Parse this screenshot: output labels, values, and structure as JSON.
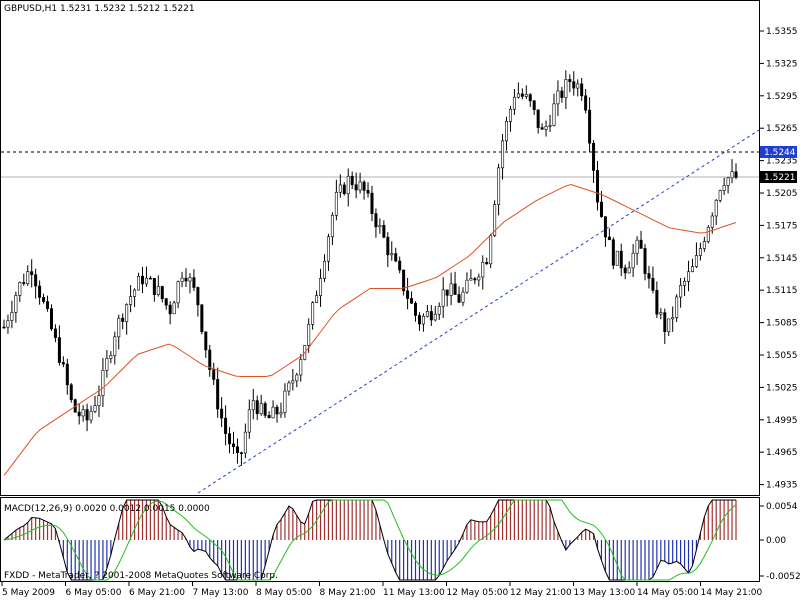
{
  "header": {
    "symbol_title": "GBPUSD,H1  1.5231 1.5232 1.5212 1.5221"
  },
  "main_chart": {
    "price_ticks": [
      "1.5355",
      "1.5325",
      "1.5295",
      "1.5265",
      "1.5235",
      "1.5205",
      "1.5175",
      "1.5145",
      "1.5115",
      "1.5085",
      "1.5055",
      "1.5025",
      "1.4995",
      "1.4965",
      "1.4935"
    ],
    "level_marker": "1.5244",
    "current_price": "1.5221",
    "colors": {
      "candles": "#000000",
      "ma": "#e05020",
      "trendline": "#1f3fcf",
      "price_box": "#000000",
      "level_box": "#1f3fcf"
    }
  },
  "macd": {
    "label": "MACD(12,26,9) 0.0020 0.0012 0.0015 0.0000",
    "ticks": [
      "0.0054",
      "0.00",
      "-0.0052"
    ],
    "colors": {
      "positive": "#a03030",
      "negative": "#2030b0",
      "main": "#000000",
      "signal": "#20c020"
    }
  },
  "footer": {
    "copyright": "FXDD - MetaTrader, ? 2001-2008 MetaQuotes Software Corp."
  },
  "time_axis": [
    "5 May 2009",
    "6 May 05:00",
    "6 May 21:00",
    "7 May 13:00",
    "8 May 05:00",
    "8 May 21:00",
    "11 May 13:00",
    "12 May 05:00",
    "12 May 21:00",
    "13 May 13:00",
    "14 May 05:00",
    "14 May 21:00"
  ],
  "chart_data": {
    "type": "candlestick",
    "title": "GBPUSD,H1  1.5231 1.5232 1.5212 1.5221",
    "x_ticks": [
      "5 May 2009",
      "6 May 05:00",
      "6 May 21:00",
      "7 May 13:00",
      "8 May 05:00",
      "8 May 21:00",
      "11 May 13:00",
      "12 May 05:00",
      "12 May 21:00",
      "13 May 13:00",
      "14 May 05:00",
      "14 May 21:00"
    ],
    "ylim": [
      1.4925,
      1.5375
    ],
    "close_path_approx": [
      1.5085,
      1.512,
      1.514,
      1.51,
      1.506,
      1.501,
      1.5,
      1.503,
      1.508,
      1.511,
      1.513,
      1.512,
      1.51,
      1.514,
      1.511,
      1.504,
      1.499,
      1.496,
      1.502,
      1.5,
      1.501,
      1.504,
      1.508,
      1.514,
      1.52,
      1.522,
      1.521,
      1.518,
      1.515,
      1.512,
      1.509,
      1.51,
      1.512,
      1.511,
      1.513,
      1.515,
      1.525,
      1.53,
      1.529,
      1.526,
      1.529,
      1.531,
      1.53,
      1.52,
      1.515,
      1.514,
      1.516,
      1.511,
      1.508,
      1.512,
      1.514,
      1.518,
      1.522,
      1.5221
    ],
    "ma_path_approx": [
      1.495,
      1.499,
      1.501,
      1.503,
      1.506,
      1.507,
      1.505,
      1.504,
      1.504,
      1.506,
      1.51,
      1.512,
      1.512,
      1.513,
      1.515,
      1.518,
      1.52,
      1.5215,
      1.5205,
      1.519,
      1.5175,
      1.517,
      1.518
    ]
  }
}
